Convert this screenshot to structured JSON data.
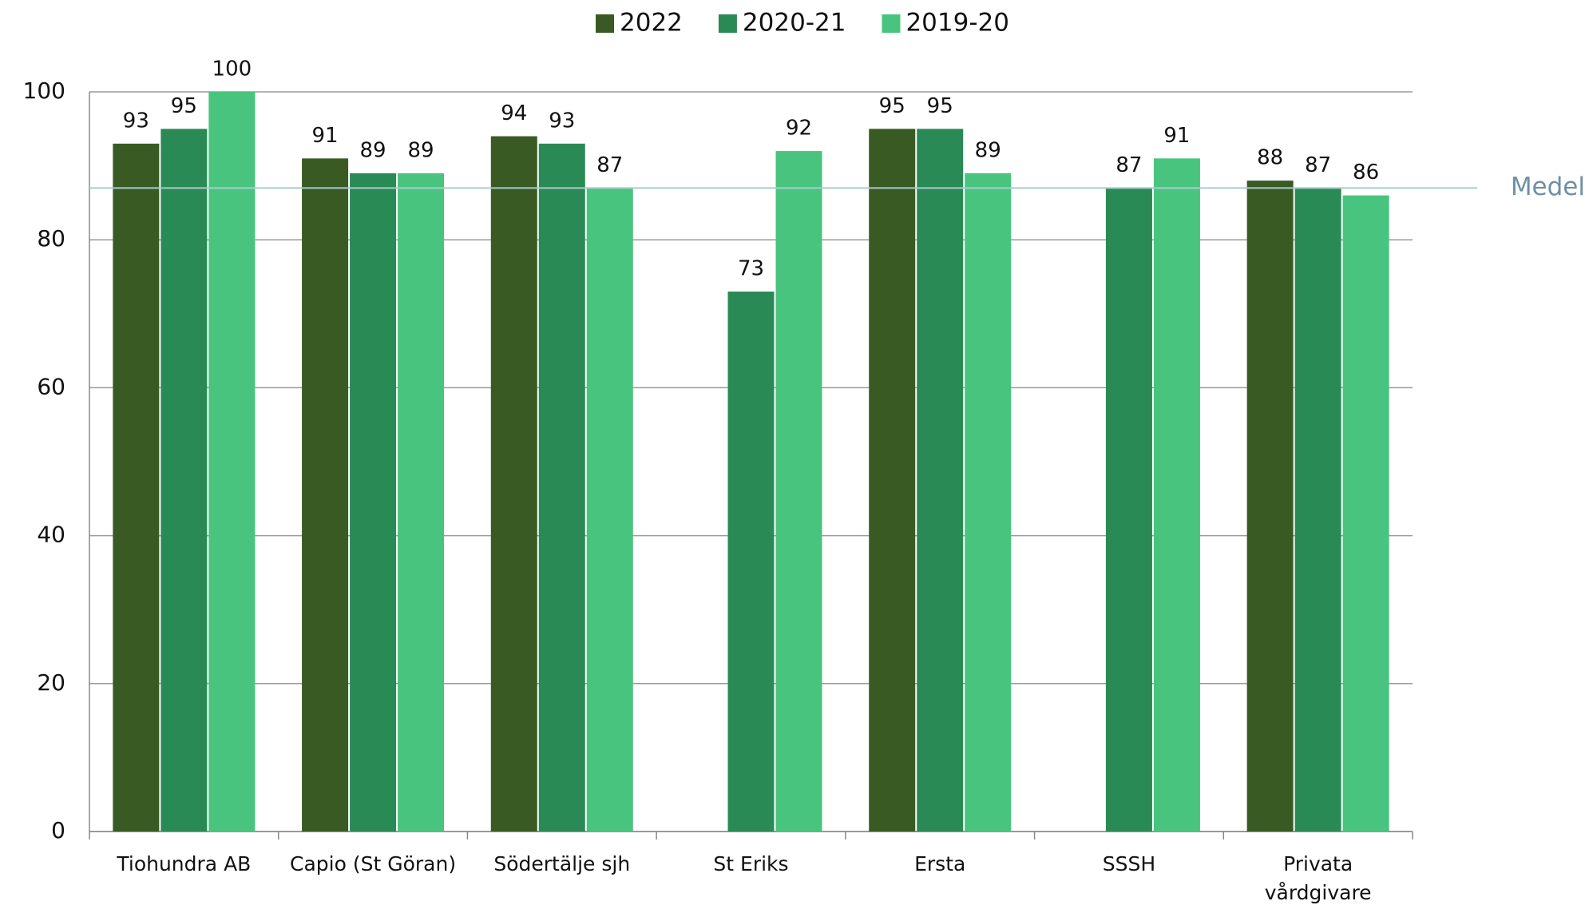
{
  "chart_data": {
    "type": "bar",
    "categories": [
      "Tiohundra AB",
      "Capio (St Göran)",
      "Södertälje sjh",
      "St Eriks",
      "Ersta",
      "SSSH",
      "Privata vårdgivare"
    ],
    "series": [
      {
        "name": "2022",
        "color": "#3a5a24",
        "values": [
          93,
          91,
          94,
          null,
          95,
          null,
          88
        ]
      },
      {
        "name": "2020-21",
        "color": "#2a8a56",
        "values": [
          95,
          89,
          93,
          73,
          95,
          87,
          87
        ]
      },
      {
        "name": "2019-20",
        "color": "#48c47e",
        "values": [
          100,
          89,
          87,
          92,
          89,
          91,
          86
        ]
      }
    ],
    "reference_line": {
      "label": "Medel",
      "value": 87,
      "color": "#a9cccc"
    },
    "ylim": [
      0,
      100
    ],
    "yticks": [
      0,
      20,
      40,
      60,
      80,
      100
    ],
    "grid": true,
    "legend": "top"
  }
}
